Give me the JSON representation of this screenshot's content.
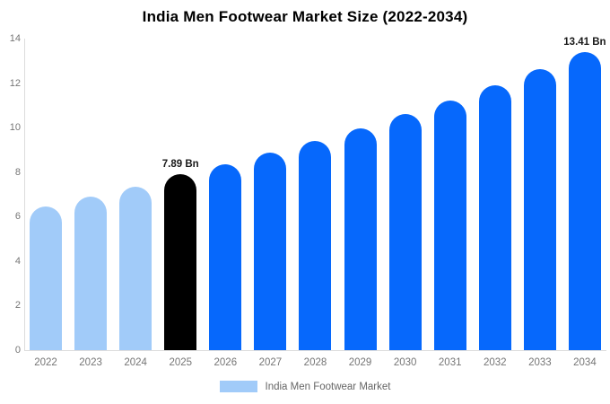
{
  "title": "India Men Footwear Market Size (2022-2034)",
  "chart_data": {
    "type": "bar",
    "title": "India Men Footwear Market Size (2022-2034)",
    "categories": [
      "2022",
      "2023",
      "2024",
      "2025",
      "2026",
      "2027",
      "2028",
      "2029",
      "2030",
      "2031",
      "2032",
      "2033",
      "2034"
    ],
    "values": [
      6.45,
      6.92,
      7.36,
      7.89,
      8.37,
      8.88,
      9.42,
      9.98,
      10.6,
      11.22,
      11.9,
      12.62,
      13.41
    ],
    "bar_colors": [
      "#A1CBF9",
      "#A1CBF9",
      "#A1CBF9",
      "#000000",
      "#0668FC",
      "#0668FC",
      "#0668FC",
      "#0668FC",
      "#0668FC",
      "#0668FC",
      "#0668FC",
      "#0668FC",
      "#0668FC"
    ],
    "annotations": [
      {
        "category": "2025",
        "text": "7.89 Bn"
      },
      {
        "category": "2034",
        "text": "13.41 Bn"
      }
    ],
    "xlabel": "",
    "ylabel": "",
    "ylim": [
      0,
      14
    ],
    "yticks": [
      0,
      2,
      4,
      6,
      8,
      10,
      12,
      14
    ],
    "grid": false,
    "legend": {
      "position": "bottom",
      "label": "India Men Footwear Market",
      "swatch_color": "#A1CBF9"
    },
    "colors": {
      "historical_bar": "#A1CBF9",
      "base_year_bar": "#000000",
      "forecast_bar": "#0668FC",
      "axis_line": "#dddddd",
      "tick_text": "#757575",
      "legend_text": "#666666",
      "value_label_text": "#1a1a1a",
      "title_text": "#000000"
    }
  }
}
